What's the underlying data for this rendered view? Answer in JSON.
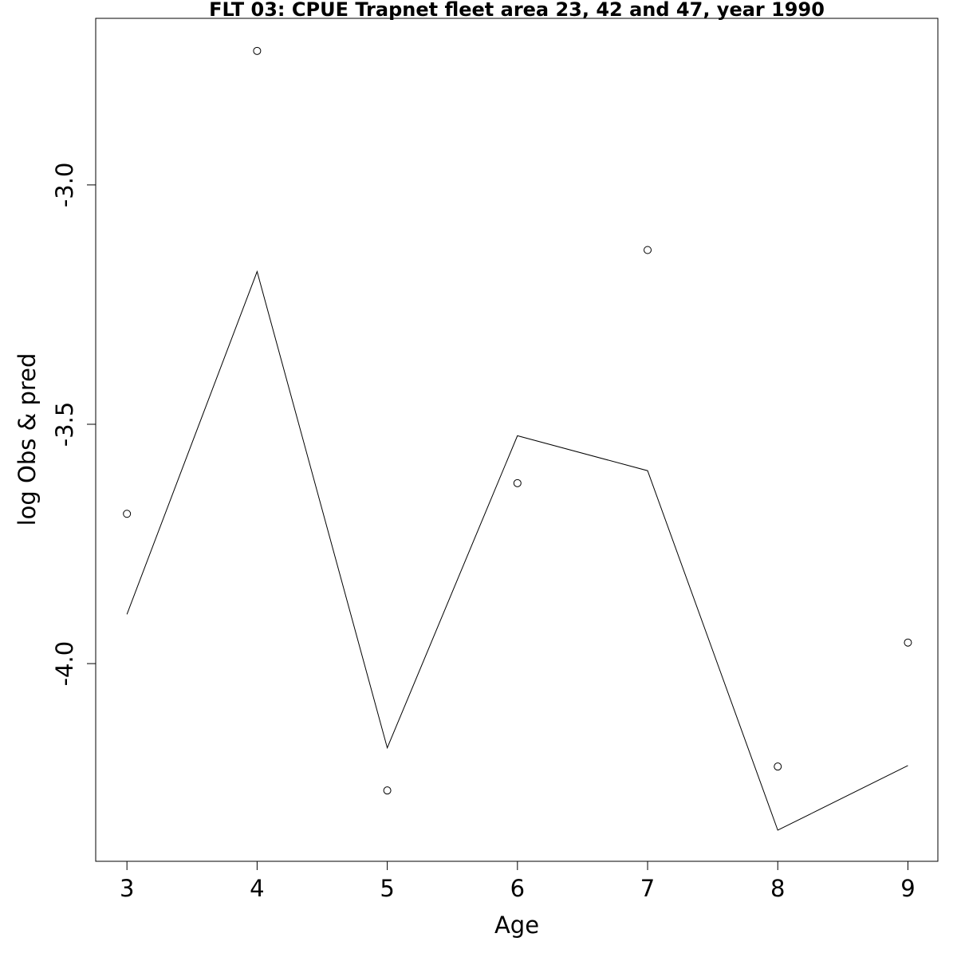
{
  "chart_data": {
    "type": "line",
    "title": "FLT 03: CPUE Trapnet fleet area 23, 42 and 47, year 1990",
    "xlabel": "Age",
    "ylabel": "log Obs & pred",
    "x": [
      3,
      4,
      5,
      6,
      7,
      8,
      9
    ],
    "xticks": [
      "3",
      "4",
      "5",
      "6",
      "7",
      "8",
      "9"
    ],
    "yticks": [
      "-3.0",
      "-3.5",
      "-4.0"
    ],
    "ytick_values": [
      -3.0,
      -3.5,
      -4.0
    ],
    "xlim": [
      2.76,
      9.23
    ],
    "ylim": [
      -4.413,
      -2.652
    ],
    "series": [
      {
        "style": "points",
        "values": [
          -3.687,
          -2.72,
          -4.265,
          -3.623,
          -3.136,
          -4.215,
          -3.956
        ]
      },
      {
        "style": "line",
        "values": [
          -3.897,
          -3.181,
          -4.176,
          -3.524,
          -3.597,
          -4.348,
          -4.213
        ]
      }
    ],
    "grid": false,
    "legend": "none"
  }
}
